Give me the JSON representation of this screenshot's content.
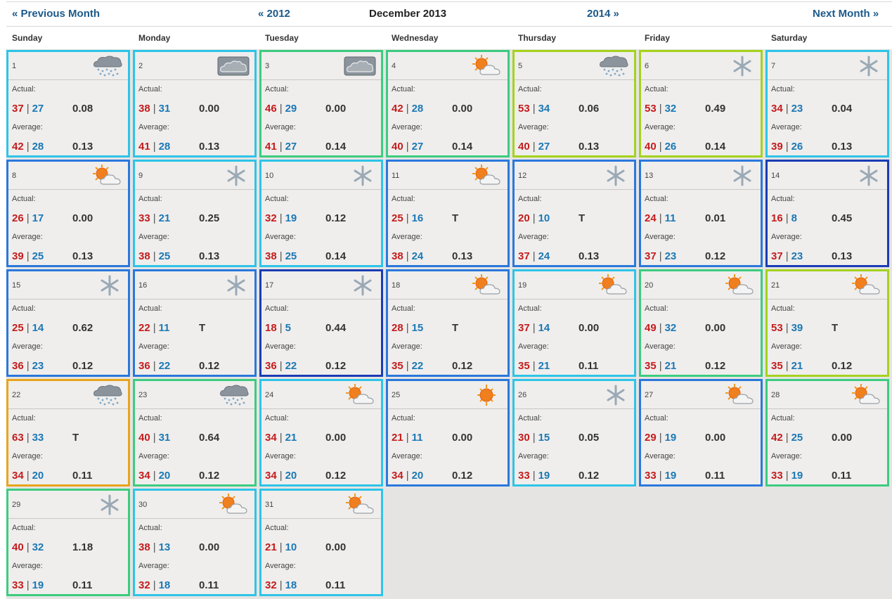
{
  "nav": {
    "prev_month": "« Previous Month",
    "prev_year": "« 2012",
    "title": "December 2013",
    "next_year": "2014 »",
    "next_month": "Next Month »"
  },
  "weekdays": [
    "Sunday",
    "Monday",
    "Tuesday",
    "Wednesday",
    "Thursday",
    "Friday",
    "Saturday"
  ],
  "labels": {
    "actual": "Actual:",
    "average": "Average:"
  },
  "colors": {
    "high_temp": "#c41c1c",
    "low_temp": "#1b78b4",
    "border_levels": {
      "orange": "#e8a51c",
      "yellow-green": "#a5d21e",
      "green": "#3ccc80",
      "cyan": "#2ec4e8",
      "blue": "#2a78dc",
      "dark-blue": "#1a3cb4"
    }
  },
  "days": [
    {
      "day": "1",
      "icon": "rain-cloud-icon",
      "border": "cyan",
      "actual_hi": "37",
      "actual_lo": "27",
      "actual_precip": "0.08",
      "avg_hi": "42",
      "avg_lo": "28",
      "avg_precip": "0.13"
    },
    {
      "day": "2",
      "icon": "overcast-cloud-icon",
      "border": "cyan",
      "actual_hi": "38",
      "actual_lo": "31",
      "actual_precip": "0.00",
      "avg_hi": "41",
      "avg_lo": "28",
      "avg_precip": "0.13"
    },
    {
      "day": "3",
      "icon": "overcast-cloud-icon",
      "border": "green",
      "actual_hi": "46",
      "actual_lo": "29",
      "actual_precip": "0.00",
      "avg_hi": "41",
      "avg_lo": "27",
      "avg_precip": "0.14"
    },
    {
      "day": "4",
      "icon": "partly-sunny-icon",
      "border": "green",
      "actual_hi": "42",
      "actual_lo": "28",
      "actual_precip": "0.00",
      "avg_hi": "40",
      "avg_lo": "27",
      "avg_precip": "0.14"
    },
    {
      "day": "5",
      "icon": "rain-cloud-icon",
      "border": "yellow-green",
      "actual_hi": "53",
      "actual_lo": "34",
      "actual_precip": "0.06",
      "avg_hi": "40",
      "avg_lo": "27",
      "avg_precip": "0.13"
    },
    {
      "day": "6",
      "icon": "snowflake-icon",
      "border": "yellow-green",
      "actual_hi": "53",
      "actual_lo": "32",
      "actual_precip": "0.49",
      "avg_hi": "40",
      "avg_lo": "26",
      "avg_precip": "0.14"
    },
    {
      "day": "7",
      "icon": "snowflake-icon",
      "border": "cyan",
      "actual_hi": "34",
      "actual_lo": "23",
      "actual_precip": "0.04",
      "avg_hi": "39",
      "avg_lo": "26",
      "avg_precip": "0.13"
    },
    {
      "day": "8",
      "icon": "partly-sunny-icon",
      "border": "blue",
      "actual_hi": "26",
      "actual_lo": "17",
      "actual_precip": "0.00",
      "avg_hi": "39",
      "avg_lo": "25",
      "avg_precip": "0.13"
    },
    {
      "day": "9",
      "icon": "snowflake-icon",
      "border": "cyan",
      "actual_hi": "33",
      "actual_lo": "21",
      "actual_precip": "0.25",
      "avg_hi": "38",
      "avg_lo": "25",
      "avg_precip": "0.13"
    },
    {
      "day": "10",
      "icon": "snowflake-icon",
      "border": "cyan",
      "actual_hi": "32",
      "actual_lo": "19",
      "actual_precip": "0.12",
      "avg_hi": "38",
      "avg_lo": "25",
      "avg_precip": "0.14"
    },
    {
      "day": "11",
      "icon": "partly-sunny-icon",
      "border": "blue",
      "actual_hi": "25",
      "actual_lo": "16",
      "actual_precip": "T",
      "avg_hi": "38",
      "avg_lo": "24",
      "avg_precip": "0.13"
    },
    {
      "day": "12",
      "icon": "snowflake-icon",
      "border": "blue",
      "actual_hi": "20",
      "actual_lo": "10",
      "actual_precip": "T",
      "avg_hi": "37",
      "avg_lo": "24",
      "avg_precip": "0.13"
    },
    {
      "day": "13",
      "icon": "snowflake-icon",
      "border": "blue",
      "actual_hi": "24",
      "actual_lo": "11",
      "actual_precip": "0.01",
      "avg_hi": "37",
      "avg_lo": "23",
      "avg_precip": "0.12"
    },
    {
      "day": "14",
      "icon": "snowflake-icon",
      "border": "dark-blue",
      "actual_hi": "16",
      "actual_lo": "8",
      "actual_precip": "0.45",
      "avg_hi": "37",
      "avg_lo": "23",
      "avg_precip": "0.13"
    },
    {
      "day": "15",
      "icon": "snowflake-icon",
      "border": "blue",
      "actual_hi": "25",
      "actual_lo": "14",
      "actual_precip": "0.62",
      "avg_hi": "36",
      "avg_lo": "23",
      "avg_precip": "0.12"
    },
    {
      "day": "16",
      "icon": "snowflake-icon",
      "border": "blue",
      "actual_hi": "22",
      "actual_lo": "11",
      "actual_precip": "T",
      "avg_hi": "36",
      "avg_lo": "22",
      "avg_precip": "0.12"
    },
    {
      "day": "17",
      "icon": "snowflake-icon",
      "border": "dark-blue",
      "actual_hi": "18",
      "actual_lo": "5",
      "actual_precip": "0.44",
      "avg_hi": "36",
      "avg_lo": "22",
      "avg_precip": "0.12"
    },
    {
      "day": "18",
      "icon": "partly-sunny-icon",
      "border": "blue",
      "actual_hi": "28",
      "actual_lo": "15",
      "actual_precip": "T",
      "avg_hi": "35",
      "avg_lo": "22",
      "avg_precip": "0.12"
    },
    {
      "day": "19",
      "icon": "partly-sunny-icon",
      "border": "cyan",
      "actual_hi": "37",
      "actual_lo": "14",
      "actual_precip": "0.00",
      "avg_hi": "35",
      "avg_lo": "21",
      "avg_precip": "0.11"
    },
    {
      "day": "20",
      "icon": "partly-sunny-icon",
      "border": "green",
      "actual_hi": "49",
      "actual_lo": "32",
      "actual_precip": "0.00",
      "avg_hi": "35",
      "avg_lo": "21",
      "avg_precip": "0.12"
    },
    {
      "day": "21",
      "icon": "partly-sunny-icon",
      "border": "yellow-green",
      "actual_hi": "53",
      "actual_lo": "39",
      "actual_precip": "T",
      "avg_hi": "35",
      "avg_lo": "21",
      "avg_precip": "0.12"
    },
    {
      "day": "22",
      "icon": "rain-cloud-icon",
      "border": "orange",
      "actual_hi": "63",
      "actual_lo": "33",
      "actual_precip": "T",
      "avg_hi": "34",
      "avg_lo": "20",
      "avg_precip": "0.11"
    },
    {
      "day": "23",
      "icon": "rain-cloud-icon",
      "border": "green",
      "actual_hi": "40",
      "actual_lo": "31",
      "actual_precip": "0.64",
      "avg_hi": "34",
      "avg_lo": "20",
      "avg_precip": "0.12"
    },
    {
      "day": "24",
      "icon": "partly-sunny-icon",
      "border": "cyan",
      "actual_hi": "34",
      "actual_lo": "21",
      "actual_precip": "0.00",
      "avg_hi": "34",
      "avg_lo": "20",
      "avg_precip": "0.12"
    },
    {
      "day": "25",
      "icon": "sunny-icon",
      "border": "blue",
      "actual_hi": "21",
      "actual_lo": "11",
      "actual_precip": "0.00",
      "avg_hi": "34",
      "avg_lo": "20",
      "avg_precip": "0.12"
    },
    {
      "day": "26",
      "icon": "snowflake-icon",
      "border": "cyan",
      "actual_hi": "30",
      "actual_lo": "15",
      "actual_precip": "0.05",
      "avg_hi": "33",
      "avg_lo": "19",
      "avg_precip": "0.12"
    },
    {
      "day": "27",
      "icon": "partly-sunny-icon",
      "border": "blue",
      "actual_hi": "29",
      "actual_lo": "19",
      "actual_precip": "0.00",
      "avg_hi": "33",
      "avg_lo": "19",
      "avg_precip": "0.11"
    },
    {
      "day": "28",
      "icon": "partly-sunny-icon",
      "border": "green",
      "actual_hi": "42",
      "actual_lo": "25",
      "actual_precip": "0.00",
      "avg_hi": "33",
      "avg_lo": "19",
      "avg_precip": "0.11"
    },
    {
      "day": "29",
      "icon": "snowflake-icon",
      "border": "green",
      "actual_hi": "40",
      "actual_lo": "32",
      "actual_precip": "1.18",
      "avg_hi": "33",
      "avg_lo": "19",
      "avg_precip": "0.11"
    },
    {
      "day": "30",
      "icon": "partly-sunny-icon",
      "border": "cyan",
      "actual_hi": "38",
      "actual_lo": "13",
      "actual_precip": "0.00",
      "avg_hi": "32",
      "avg_lo": "18",
      "avg_precip": "0.11"
    },
    {
      "day": "31",
      "icon": "partly-sunny-icon",
      "border": "cyan",
      "actual_hi": "21",
      "actual_lo": "10",
      "actual_precip": "0.00",
      "avg_hi": "32",
      "avg_lo": "18",
      "avg_precip": "0.11"
    }
  ]
}
